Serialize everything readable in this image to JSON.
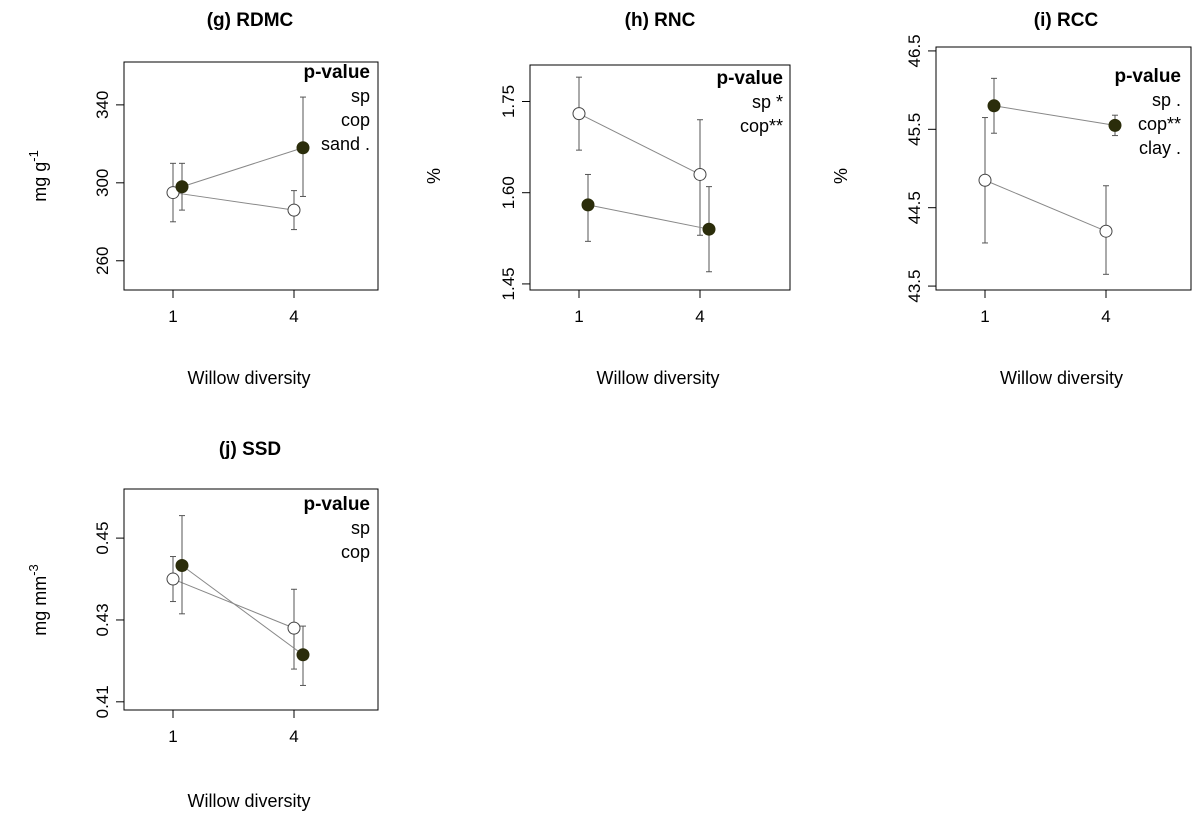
{
  "chart_data": [
    {
      "type": "line",
      "title": "(g) RDMC",
      "xlabel": "Willow diversity",
      "ylabel": "mg g",
      "ylabel_sup": "-1",
      "x_ticks": [
        "1",
        "4"
      ],
      "y_ticks": [
        "260",
        "300",
        "340"
      ],
      "ylim": [
        245,
        362
      ],
      "legend_title": "p-value",
      "legend_items": [
        "sp",
        "cop",
        "sand ."
      ],
      "series": [
        {
          "fill": "open",
          "x": [
            1,
            4
          ],
          "y": [
            295,
            286
          ],
          "err_low": [
            280,
            276
          ],
          "err_high": [
            310,
            296
          ]
        },
        {
          "fill": "filled",
          "x": [
            1,
            4
          ],
          "y": [
            298,
            318
          ],
          "err_low": [
            286,
            293
          ],
          "err_high": [
            310,
            344
          ]
        }
      ]
    },
    {
      "type": "line",
      "title": "(h) RNC",
      "xlabel": "Willow diversity",
      "ylabel": "%",
      "x_ticks": [
        "1",
        "4"
      ],
      "y_ticks": [
        "1.45",
        "1.60",
        "1.75"
      ],
      "ylim": [
        1.44,
        1.81
      ],
      "legend_title": "p-value",
      "legend_items": [
        "sp *",
        "cop**"
      ],
      "series": [
        {
          "fill": "open",
          "x": [
            1,
            4
          ],
          "y": [
            1.73,
            1.63
          ],
          "err_low": [
            1.67,
            1.53
          ],
          "err_high": [
            1.79,
            1.72
          ]
        },
        {
          "fill": "filled",
          "x": [
            1,
            4
          ],
          "y": [
            1.58,
            1.54
          ],
          "err_low": [
            1.52,
            1.47
          ],
          "err_high": [
            1.63,
            1.61
          ]
        }
      ]
    },
    {
      "type": "line",
      "title": "(i) RCC",
      "xlabel": "Willow diversity",
      "ylabel": "%",
      "x_ticks": [
        "1",
        "4"
      ],
      "y_ticks": [
        "43.5",
        "44.5",
        "45.5",
        "46.5"
      ],
      "ylim": [
        43.45,
        46.55
      ],
      "legend_title": "p-value",
      "legend_items": [
        "sp .",
        "cop**",
        "clay ."
      ],
      "series": [
        {
          "fill": "open",
          "x": [
            1,
            4
          ],
          "y": [
            44.85,
            44.2
          ],
          "err_low": [
            44.05,
            43.65
          ],
          "err_high": [
            45.65,
            44.78
          ]
        },
        {
          "fill": "filled",
          "x": [
            1,
            4
          ],
          "y": [
            45.8,
            45.55
          ],
          "err_low": [
            45.45,
            45.42
          ],
          "err_high": [
            46.15,
            45.68
          ]
        }
      ]
    },
    {
      "type": "line",
      "title": "(j) SSD",
      "xlabel": "Willow diversity",
      "ylabel": "mg mm",
      "ylabel_sup": "-3",
      "x_ticks": [
        "1",
        "4"
      ],
      "y_ticks": [
        "0.41",
        "0.43",
        "0.45"
      ],
      "ylim": [
        0.408,
        0.462
      ],
      "legend_title": "p-value",
      "legend_items": [
        "sp",
        "cop"
      ],
      "series": [
        {
          "fill": "open",
          "x": [
            1,
            4
          ],
          "y": [
            0.44,
            0.428
          ],
          "err_low": [
            0.4345,
            0.418
          ],
          "err_high": [
            0.4455,
            0.4375
          ]
        },
        {
          "fill": "filled",
          "x": [
            1,
            4
          ],
          "y": [
            0.4433,
            0.4215
          ],
          "err_low": [
            0.4315,
            0.414
          ],
          "err_high": [
            0.4555,
            0.4285
          ]
        }
      ]
    }
  ],
  "colors": {
    "filled_point": "#2b2d0b",
    "open_point": "#ffffff",
    "line": "#888888",
    "axis": "#000000"
  }
}
